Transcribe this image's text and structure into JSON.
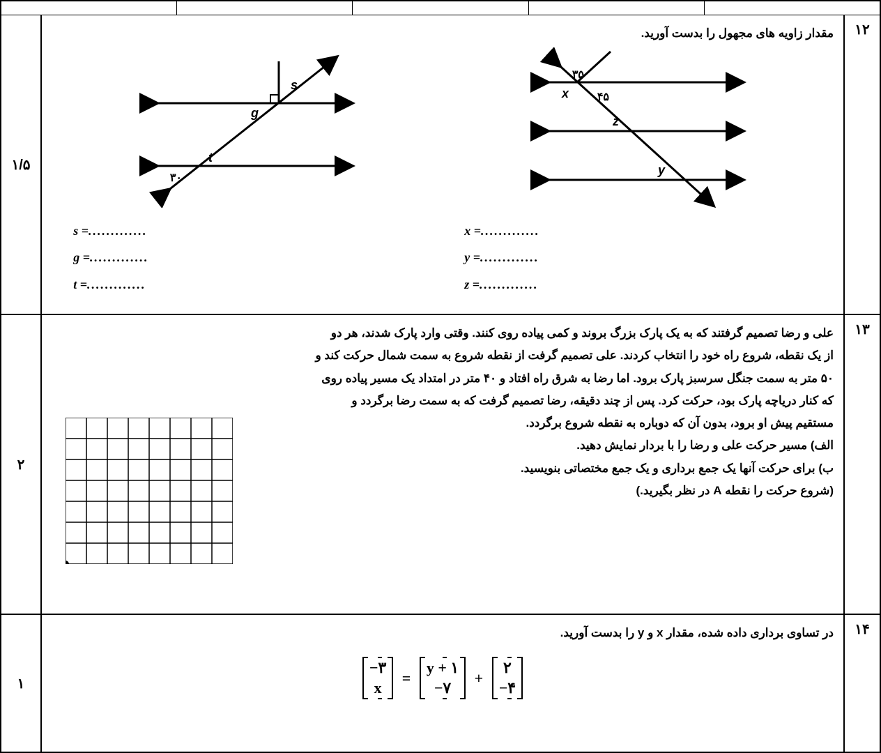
{
  "q12": {
    "num": "۱۲",
    "score": "۱/۵",
    "prompt": "مقدار زاویه های مجهول را بدست آورید.",
    "fig1": {
      "labels": {
        "a35": "۳۵",
        "a45": "۴۵",
        "x": "x",
        "y": "y",
        "z": "z"
      },
      "answers": {
        "x": "x =",
        "y": "y =",
        "z": "z =",
        "dots": "............."
      }
    },
    "fig2": {
      "labels": {
        "a30": "۳۰",
        "s": "s",
        "g": "g",
        "t": "t"
      },
      "answers": {
        "s": "s =",
        "g": "g =",
        "t": "t =",
        "dots": "............."
      }
    }
  },
  "q13": {
    "num": "۱۳",
    "score": "۲",
    "lines": [
      "علی و رضا تصمیم گرفتند که به یک پارک بزرگ بروند و کمی پیاده روی کنند. وقتی وارد پارک شدند، هر دو",
      "از یک نقطه، شروع راه خود را انتخاب کردند. علی تصمیم گرفت از نقطه شروع به سمت شمال حرکت کند و",
      "۵۰ متر به سمت جنگل سرسبز پارک برود. اما رضا به شرق راه افتاد و ۴۰ متر در امتداد یک مسیر پیاده روی",
      "که کنار دریاچه پارک بود، حرکت کرد. پس از چند دقیقه، رضا تصمیم گرفت که به سمت رضا برگردد و",
      "مستقیم پیش او برود، بدون آن که دوباره به نقطه شروع برگردد.",
      "الف) مسیر حرکت علی و رضا را با بردار نمایش دهید.",
      "ب) برای حرکت آنها یک جمع برداری و یک جمع مختصاتی بنویسید.",
      "(شروع حرکت را نقطه A در نظر بگیرید.)"
    ],
    "grid": {
      "cols": 8,
      "rows": 7,
      "cell": 30,
      "stroke": "#000000",
      "bg": "#ffffff"
    }
  },
  "q14": {
    "num": "۱۴",
    "score": "۱",
    "prompt": "در تساوی برداری داده شده، مقدار x و y را بدست آورید.",
    "eq": {
      "v1": [
        "−۳",
        "x"
      ],
      "v2": [
        "y + ۱",
        "−۷"
      ],
      "v3": [
        "۲",
        "−۴"
      ]
    }
  },
  "colors": {
    "line": "#000000",
    "bg": "#ffffff"
  }
}
